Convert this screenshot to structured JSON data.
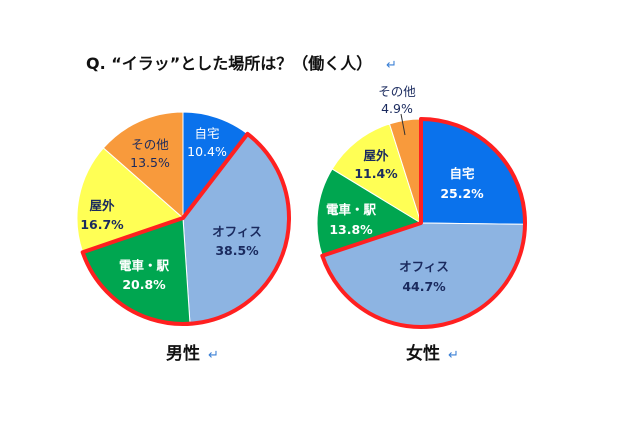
{
  "chart_data": [
    {
      "type": "pie",
      "title": "Q. “イラッ”とした場所は？（働く人）",
      "subtitle": "男性",
      "start": "top, clockwise",
      "slices": [
        {
          "label": "自宅",
          "value": 10.4,
          "display": "10.4%",
          "color": "#0a72ec",
          "highlighted": false
        },
        {
          "label": "オフィス",
          "value": 38.5,
          "display": "38.5%",
          "color": "#8db4e2",
          "highlighted": true
        },
        {
          "label": "電車・駅",
          "value": 20.8,
          "display": "20.8%",
          "color": "#00a650",
          "highlighted": true
        },
        {
          "label": "屋外",
          "value": 16.7,
          "display": "16.7%",
          "color": "#ffff55",
          "highlighted": false
        },
        {
          "label": "その他",
          "value": 13.5,
          "display": "13.5%",
          "color": "#f89a3c",
          "highlighted": false
        }
      ],
      "highlight_color": "#ff2020"
    },
    {
      "type": "pie",
      "subtitle": "女性",
      "start": "top, clockwise",
      "slices": [
        {
          "label": "自宅",
          "value": 25.2,
          "display": "25.2%",
          "color": "#0a72ec",
          "highlighted": true
        },
        {
          "label": "オフィス",
          "value": 44.7,
          "display": "44.7%",
          "color": "#8db4e2",
          "highlighted": true
        },
        {
          "label": "電車・駅",
          "value": 13.8,
          "display": "13.8%",
          "color": "#00a650",
          "highlighted": false
        },
        {
          "label": "屋外",
          "value": 11.4,
          "display": "11.4%",
          "color": "#ffff55",
          "highlighted": false
        },
        {
          "label": "その他",
          "value": 4.9,
          "display": "4.9%",
          "color": "#f89a3c",
          "highlighted": false
        }
      ],
      "highlight_color": "#ff2020"
    }
  ],
  "return_mark": "↵"
}
